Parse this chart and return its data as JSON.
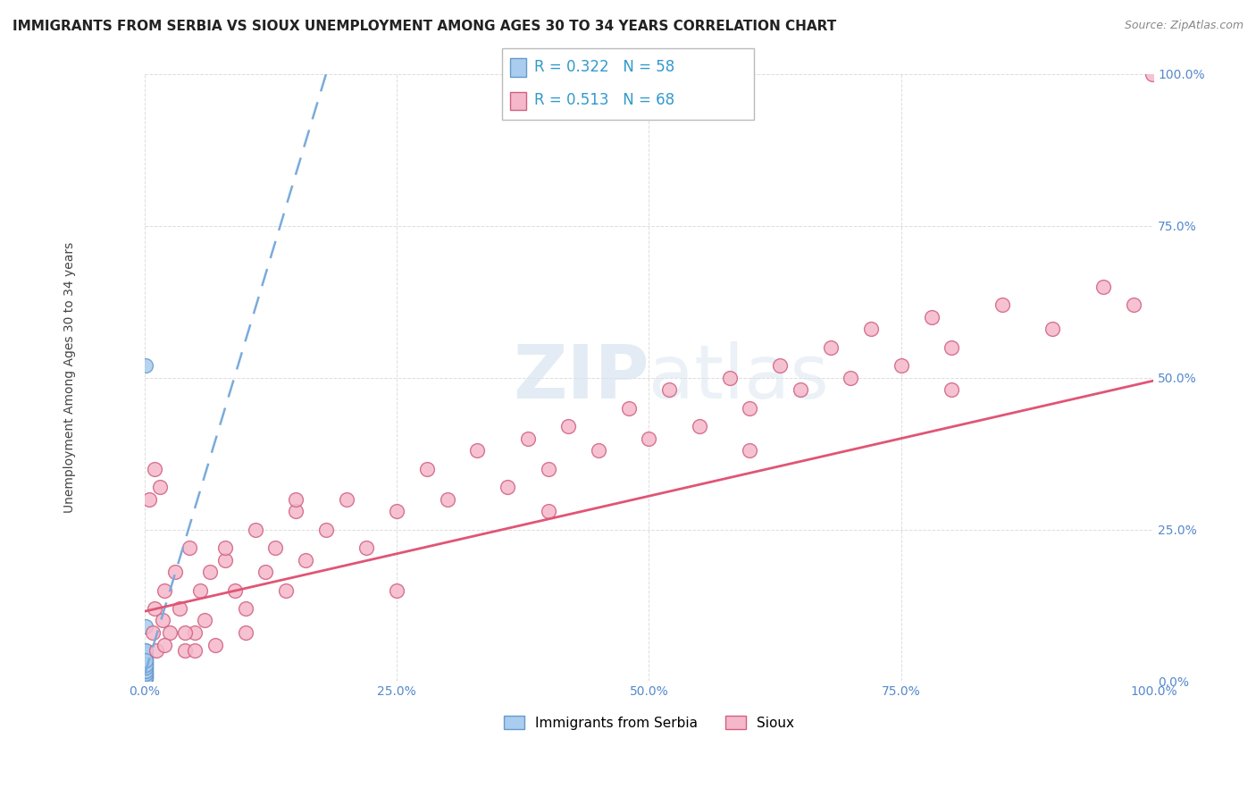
{
  "title": "IMMIGRANTS FROM SERBIA VS SIOUX UNEMPLOYMENT AMONG AGES 30 TO 34 YEARS CORRELATION CHART",
  "source": "Source: ZipAtlas.com",
  "ylabel": "Unemployment Among Ages 30 to 34 years",
  "xlim": [
    0.0,
    1.0
  ],
  "ylim": [
    0.0,
    1.0
  ],
  "xticks": [
    0.0,
    0.25,
    0.5,
    0.75,
    1.0
  ],
  "xtick_labels": [
    "0.0%",
    "25.0%",
    "50.0%",
    "75.0%",
    "100.0%"
  ],
  "yticks": [
    0.0,
    0.25,
    0.5,
    0.75,
    1.0
  ],
  "ytick_labels": [
    "0.0%",
    "25.0%",
    "50.0%",
    "75.0%",
    "100.0%"
  ],
  "legend_r1": "R = 0.322",
  "legend_n1": "N = 58",
  "legend_r2": "R = 0.513",
  "legend_n2": "N = 68",
  "serbia_color": "#aaccee",
  "serbia_edge": "#6699cc",
  "sioux_color": "#f5b8ca",
  "sioux_edge": "#d06080",
  "serbia_line_color": "#7aabdb",
  "sioux_line_color": "#e05575",
  "serbia_points_x": [
    0.001,
    0.001,
    0.001,
    0.001,
    0.001,
    0.001,
    0.001,
    0.001,
    0.001,
    0.001,
    0.001,
    0.001,
    0.001,
    0.001,
    0.001,
    0.001,
    0.001,
    0.001,
    0.001,
    0.001,
    0.001,
    0.001,
    0.001,
    0.001,
    0.001,
    0.001,
    0.001,
    0.001,
    0.001,
    0.001,
    0.001,
    0.001,
    0.001,
    0.001,
    0.001,
    0.001,
    0.001,
    0.001,
    0.001,
    0.001,
    0.001,
    0.001,
    0.001,
    0.001,
    0.001,
    0.001,
    0.001,
    0.001,
    0.001,
    0.001,
    0.001,
    0.001,
    0.001,
    0.001,
    0.001,
    0.001,
    0.001,
    0.001
  ],
  "serbia_points_y": [
    0.005,
    0.007,
    0.009,
    0.011,
    0.013,
    0.015,
    0.017,
    0.019,
    0.021,
    0.023,
    0.025,
    0.027,
    0.029,
    0.031,
    0.033,
    0.035,
    0.037,
    0.039,
    0.041,
    0.043,
    0.005,
    0.008,
    0.012,
    0.016,
    0.02,
    0.024,
    0.028,
    0.032,
    0.036,
    0.04,
    0.005,
    0.01,
    0.015,
    0.02,
    0.025,
    0.03,
    0.035,
    0.04,
    0.045,
    0.05,
    0.006,
    0.011,
    0.016,
    0.021,
    0.026,
    0.031,
    0.036,
    0.041,
    0.046,
    0.051,
    0.007,
    0.012,
    0.017,
    0.022,
    0.027,
    0.034,
    0.52,
    0.09
  ],
  "sioux_points_x": [
    0.005,
    0.008,
    0.01,
    0.012,
    0.015,
    0.018,
    0.02,
    0.025,
    0.03,
    0.035,
    0.04,
    0.045,
    0.05,
    0.055,
    0.06,
    0.065,
    0.07,
    0.08,
    0.09,
    0.1,
    0.11,
    0.12,
    0.13,
    0.14,
    0.15,
    0.16,
    0.18,
    0.2,
    0.22,
    0.25,
    0.28,
    0.3,
    0.33,
    0.36,
    0.38,
    0.4,
    0.42,
    0.45,
    0.48,
    0.5,
    0.52,
    0.55,
    0.58,
    0.6,
    0.63,
    0.65,
    0.68,
    0.7,
    0.72,
    0.75,
    0.78,
    0.8,
    0.85,
    0.9,
    0.95,
    0.98,
    0.01,
    0.04,
    0.08,
    0.15,
    0.25,
    0.4,
    0.6,
    0.8,
    0.02,
    0.05,
    0.1,
    0.999
  ],
  "sioux_points_y": [
    0.3,
    0.08,
    0.12,
    0.05,
    0.32,
    0.1,
    0.15,
    0.08,
    0.18,
    0.12,
    0.05,
    0.22,
    0.08,
    0.15,
    0.1,
    0.18,
    0.06,
    0.2,
    0.15,
    0.12,
    0.25,
    0.18,
    0.22,
    0.15,
    0.28,
    0.2,
    0.25,
    0.3,
    0.22,
    0.28,
    0.35,
    0.3,
    0.38,
    0.32,
    0.4,
    0.35,
    0.42,
    0.38,
    0.45,
    0.4,
    0.48,
    0.42,
    0.5,
    0.45,
    0.52,
    0.48,
    0.55,
    0.5,
    0.58,
    0.52,
    0.6,
    0.55,
    0.62,
    0.58,
    0.65,
    0.62,
    0.35,
    0.08,
    0.22,
    0.3,
    0.15,
    0.28,
    0.38,
    0.48,
    0.06,
    0.05,
    0.08,
    1.0
  ],
  "serbia_trend_slope": 5.5,
  "serbia_trend_intercept": 0.01,
  "sioux_trend_slope": 0.38,
  "sioux_trend_intercept": 0.115,
  "title_fontsize": 11,
  "axis_fontsize": 10,
  "tick_fontsize": 10,
  "legend_fontsize": 12,
  "marker_size": 130,
  "background_color": "#ffffff",
  "grid_color": "#dddddd",
  "r_color": "#3399cc",
  "n_color": "#3399cc"
}
